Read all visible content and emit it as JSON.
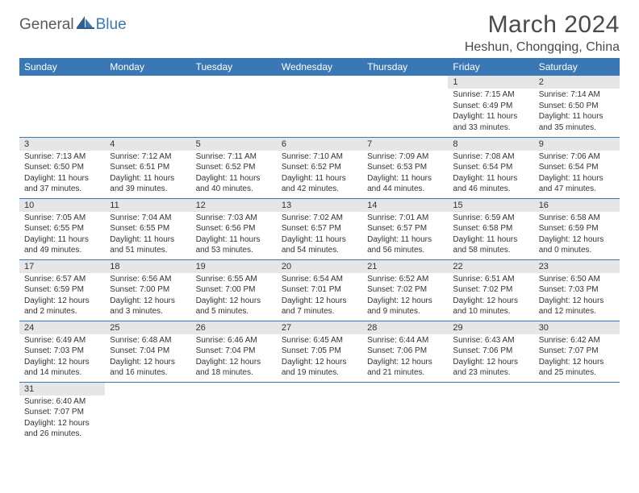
{
  "logo": {
    "textDark": "General",
    "textBlue": "Blue"
  },
  "title": "March 2024",
  "location": "Heshun, Chongqing, China",
  "colors": {
    "headerBg": "#3a78b5",
    "headerText": "#ffffff",
    "dayStripe": "#e6e6e6",
    "cellBorder": "#3a78b5",
    "textDark": "#333333",
    "logoDark": "#5a5a5a",
    "logoBlue": "#3a78b5",
    "pageBg": "#ffffff"
  },
  "weekdays": [
    "Sunday",
    "Monday",
    "Tuesday",
    "Wednesday",
    "Thursday",
    "Friday",
    "Saturday"
  ],
  "weeks": [
    [
      null,
      null,
      null,
      null,
      null,
      {
        "n": "1",
        "sr": "7:15 AM",
        "ss": "6:49 PM",
        "dl": "11 hours and 33 minutes."
      },
      {
        "n": "2",
        "sr": "7:14 AM",
        "ss": "6:50 PM",
        "dl": "11 hours and 35 minutes."
      }
    ],
    [
      {
        "n": "3",
        "sr": "7:13 AM",
        "ss": "6:50 PM",
        "dl": "11 hours and 37 minutes."
      },
      {
        "n": "4",
        "sr": "7:12 AM",
        "ss": "6:51 PM",
        "dl": "11 hours and 39 minutes."
      },
      {
        "n": "5",
        "sr": "7:11 AM",
        "ss": "6:52 PM",
        "dl": "11 hours and 40 minutes."
      },
      {
        "n": "6",
        "sr": "7:10 AM",
        "ss": "6:52 PM",
        "dl": "11 hours and 42 minutes."
      },
      {
        "n": "7",
        "sr": "7:09 AM",
        "ss": "6:53 PM",
        "dl": "11 hours and 44 minutes."
      },
      {
        "n": "8",
        "sr": "7:08 AM",
        "ss": "6:54 PM",
        "dl": "11 hours and 46 minutes."
      },
      {
        "n": "9",
        "sr": "7:06 AM",
        "ss": "6:54 PM",
        "dl": "11 hours and 47 minutes."
      }
    ],
    [
      {
        "n": "10",
        "sr": "7:05 AM",
        "ss": "6:55 PM",
        "dl": "11 hours and 49 minutes."
      },
      {
        "n": "11",
        "sr": "7:04 AM",
        "ss": "6:55 PM",
        "dl": "11 hours and 51 minutes."
      },
      {
        "n": "12",
        "sr": "7:03 AM",
        "ss": "6:56 PM",
        "dl": "11 hours and 53 minutes."
      },
      {
        "n": "13",
        "sr": "7:02 AM",
        "ss": "6:57 PM",
        "dl": "11 hours and 54 minutes."
      },
      {
        "n": "14",
        "sr": "7:01 AM",
        "ss": "6:57 PM",
        "dl": "11 hours and 56 minutes."
      },
      {
        "n": "15",
        "sr": "6:59 AM",
        "ss": "6:58 PM",
        "dl": "11 hours and 58 minutes."
      },
      {
        "n": "16",
        "sr": "6:58 AM",
        "ss": "6:59 PM",
        "dl": "12 hours and 0 minutes."
      }
    ],
    [
      {
        "n": "17",
        "sr": "6:57 AM",
        "ss": "6:59 PM",
        "dl": "12 hours and 2 minutes."
      },
      {
        "n": "18",
        "sr": "6:56 AM",
        "ss": "7:00 PM",
        "dl": "12 hours and 3 minutes."
      },
      {
        "n": "19",
        "sr": "6:55 AM",
        "ss": "7:00 PM",
        "dl": "12 hours and 5 minutes."
      },
      {
        "n": "20",
        "sr": "6:54 AM",
        "ss": "7:01 PM",
        "dl": "12 hours and 7 minutes."
      },
      {
        "n": "21",
        "sr": "6:52 AM",
        "ss": "7:02 PM",
        "dl": "12 hours and 9 minutes."
      },
      {
        "n": "22",
        "sr": "6:51 AM",
        "ss": "7:02 PM",
        "dl": "12 hours and 10 minutes."
      },
      {
        "n": "23",
        "sr": "6:50 AM",
        "ss": "7:03 PM",
        "dl": "12 hours and 12 minutes."
      }
    ],
    [
      {
        "n": "24",
        "sr": "6:49 AM",
        "ss": "7:03 PM",
        "dl": "12 hours and 14 minutes."
      },
      {
        "n": "25",
        "sr": "6:48 AM",
        "ss": "7:04 PM",
        "dl": "12 hours and 16 minutes."
      },
      {
        "n": "26",
        "sr": "6:46 AM",
        "ss": "7:04 PM",
        "dl": "12 hours and 18 minutes."
      },
      {
        "n": "27",
        "sr": "6:45 AM",
        "ss": "7:05 PM",
        "dl": "12 hours and 19 minutes."
      },
      {
        "n": "28",
        "sr": "6:44 AM",
        "ss": "7:06 PM",
        "dl": "12 hours and 21 minutes."
      },
      {
        "n": "29",
        "sr": "6:43 AM",
        "ss": "7:06 PM",
        "dl": "12 hours and 23 minutes."
      },
      {
        "n": "30",
        "sr": "6:42 AM",
        "ss": "7:07 PM",
        "dl": "12 hours and 25 minutes."
      }
    ],
    [
      {
        "n": "31",
        "sr": "6:40 AM",
        "ss": "7:07 PM",
        "dl": "12 hours and 26 minutes."
      },
      null,
      null,
      null,
      null,
      null,
      null
    ]
  ],
  "labels": {
    "sunrise": "Sunrise: ",
    "sunset": "Sunset: ",
    "daylight": "Daylight: "
  }
}
